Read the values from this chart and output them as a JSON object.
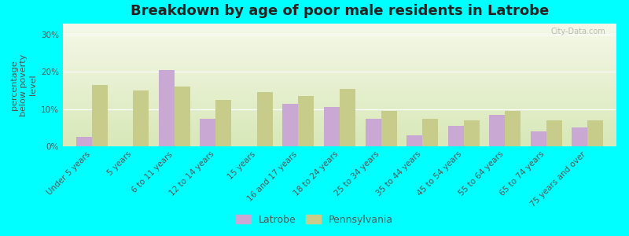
{
  "title": "Breakdown by age of poor male residents in Latrobe",
  "ylabel": "percentage\nbelow poverty\nlevel",
  "categories": [
    "Under 5 years",
    "5 years",
    "6 to 11 years",
    "12 to 14 years",
    "15 years",
    "16 and 17 years",
    "18 to 24 years",
    "25 to 34 years",
    "35 to 44 years",
    "45 to 54 years",
    "55 to 64 years",
    "65 to 74 years",
    "75 years and over"
  ],
  "latrobe_values": [
    2.5,
    0,
    20.5,
    7.5,
    0,
    11.5,
    10.5,
    7.5,
    3.0,
    5.5,
    8.5,
    4.0,
    5.0
  ],
  "pennsylvania_values": [
    16.5,
    15.0,
    16.0,
    12.5,
    14.5,
    13.5,
    15.5,
    9.5,
    7.5,
    7.0,
    9.5,
    7.0,
    7.0
  ],
  "latrobe_color": "#c9a8d4",
  "pennsylvania_color": "#c8cc8a",
  "background_color": "#00ffff",
  "yticks": [
    0,
    10,
    20,
    30
  ],
  "ylim": [
    0,
    33
  ],
  "bar_width": 0.38,
  "title_fontsize": 13,
  "axis_label_fontsize": 8,
  "tick_fontsize": 7.5,
  "watermark": "City-Data.com"
}
